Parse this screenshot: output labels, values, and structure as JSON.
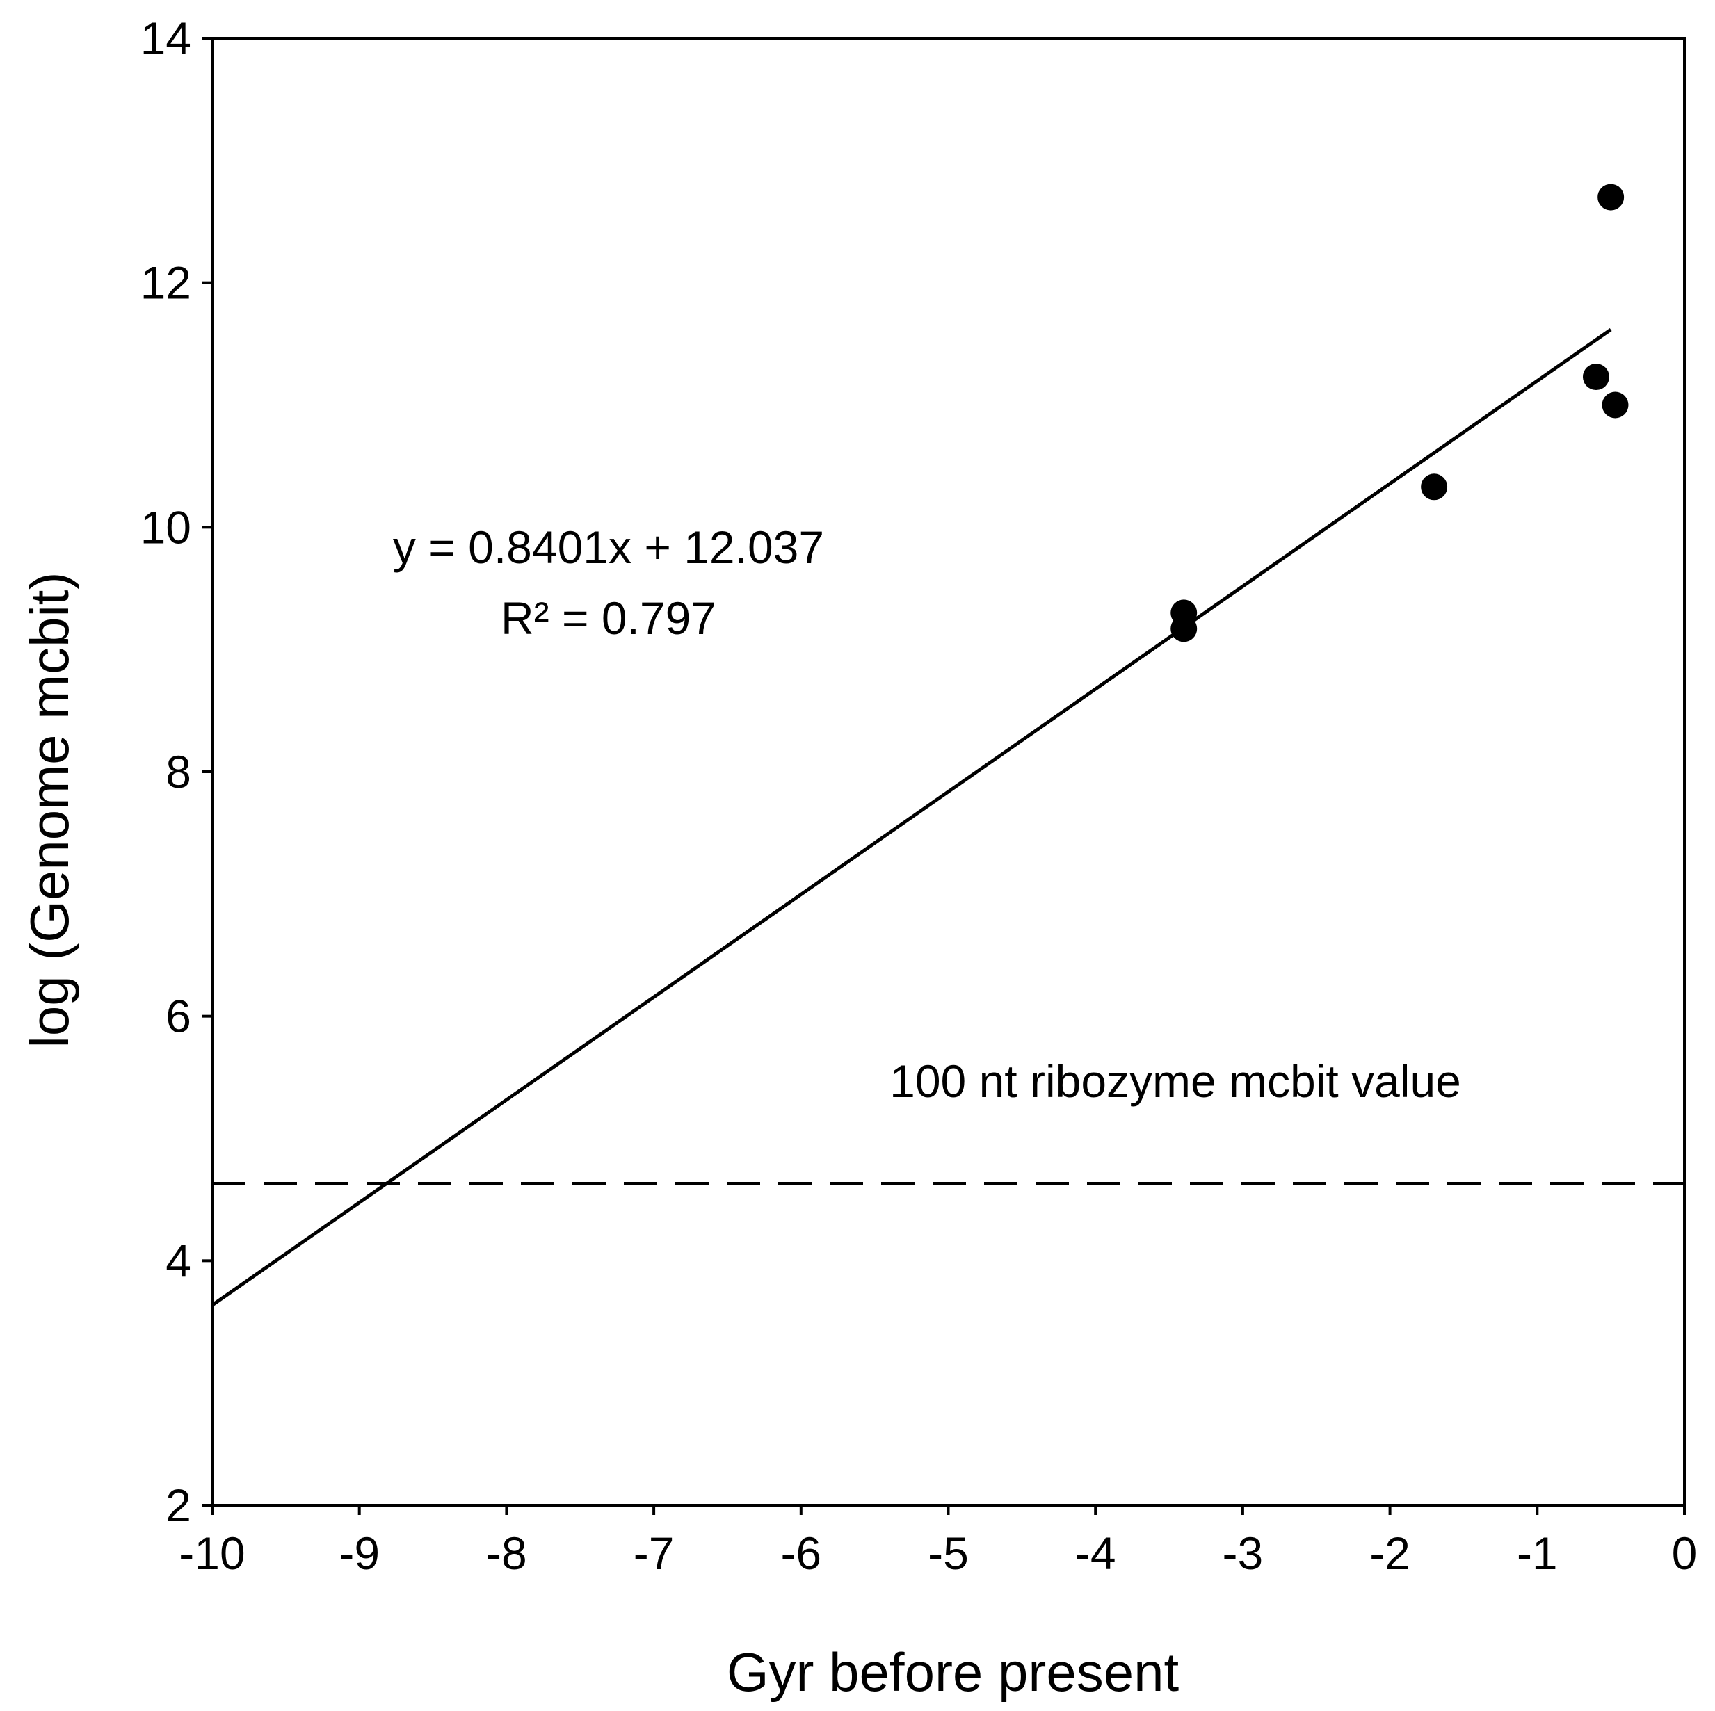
{
  "chart_data": {
    "type": "scatter",
    "title": "",
    "xlabel": "Gyr before present",
    "ylabel": "log (Genome  mcbit)",
    "xlim": [
      -10,
      0
    ],
    "ylim": [
      2,
      14
    ],
    "xticks": [
      -10,
      -9,
      -8,
      -7,
      -6,
      -5,
      -4,
      -3,
      -2,
      -1,
      0
    ],
    "yticks": [
      2,
      4,
      6,
      8,
      10,
      12,
      14
    ],
    "grid": false,
    "legend": "none",
    "points": [
      {
        "x": -3.4,
        "y": 9.3
      },
      {
        "x": -3.4,
        "y": 9.17
      },
      {
        "x": -1.7,
        "y": 10.33
      },
      {
        "x": -0.6,
        "y": 11.23
      },
      {
        "x": -0.5,
        "y": 12.7
      },
      {
        "x": -0.47,
        "y": 11.0
      }
    ],
    "trendline": {
      "slope": 0.8401,
      "intercept": 12.037,
      "x_range": [
        -10,
        -0.5
      ],
      "equation": "y = 0.8401x + 12.037",
      "r2_label": "R² = 0.797"
    },
    "reference_line": {
      "y": 4.63,
      "style": "dashed",
      "label": "100 nt ribozyme mcbit value"
    },
    "colors": {
      "points": "#000000",
      "lines": "#000000"
    }
  }
}
